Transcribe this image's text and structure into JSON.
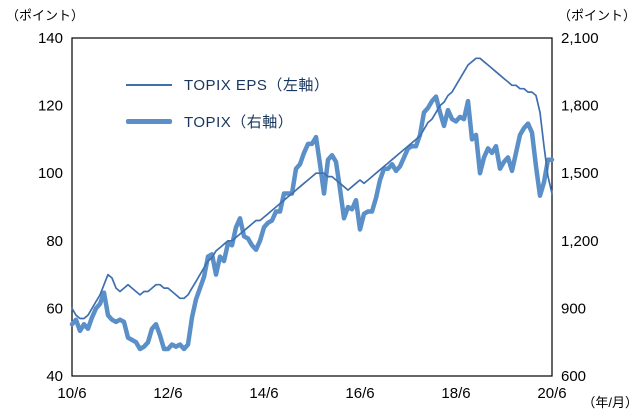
{
  "header": {
    "left_axis_unit": "（ポイント）",
    "right_axis_unit": "（ポイント）",
    "x_axis_unit": "（年/月）"
  },
  "legend": [
    {
      "label": "TOPIX EPS（左軸）",
      "style": "thin"
    },
    {
      "label": "TOPIX（右軸）",
      "style": "thick"
    }
  ],
  "colors": {
    "eps_line": "#3f6fb0",
    "topix_line": "#5a8fc8",
    "axis_text": "#000000",
    "legend_text": "#17365d",
    "plot_border": "#000000"
  },
  "chart_data": {
    "type": "line",
    "x_start": "2010/6",
    "x_end": "2020/6",
    "x_frequency": "monthly",
    "left_axis": {
      "unit": "（ポイント）",
      "min": 40,
      "max": 140,
      "tick_values": [
        140,
        120,
        100,
        80,
        60,
        40
      ],
      "tick_labels": [
        "140",
        "120",
        "100",
        "80",
        "60",
        "40"
      ]
    },
    "right_axis": {
      "unit": "（ポイント）",
      "min": 600,
      "max": 2100,
      "tick_values": [
        2100,
        1800,
        1500,
        1200,
        900,
        600
      ],
      "tick_labels": [
        "2,100",
        "1,800",
        "1,500",
        "1,200",
        "900",
        "600"
      ]
    },
    "x_axis": {
      "unit": "（年/月）",
      "tick_labels": [
        "10/6",
        "12/6",
        "14/6",
        "16/6",
        "18/6",
        "20/6"
      ],
      "tick_indices": [
        0,
        24,
        48,
        72,
        96,
        120
      ]
    },
    "grid": false,
    "legend_position": "inside-top-left",
    "series": [
      {
        "name": "TOPIX EPS（左軸）",
        "axis": "left",
        "style": "thin",
        "values": [
          60,
          58,
          57,
          57,
          58,
          60,
          62,
          64,
          67,
          70,
          69,
          66,
          65,
          66,
          67,
          66,
          65,
          64,
          65,
          65,
          66,
          67,
          67,
          66,
          66,
          65,
          64,
          63,
          63,
          64,
          66,
          68,
          70,
          72,
          74,
          75,
          77,
          78,
          79,
          80,
          80,
          81,
          82,
          83,
          84,
          85,
          86,
          86,
          87,
          88,
          89,
          90,
          91,
          92,
          93,
          94,
          95,
          96,
          97,
          98,
          99,
          100,
          100,
          100,
          99,
          99,
          98,
          97,
          96,
          95,
          96,
          97,
          98,
          97,
          98,
          99,
          100,
          101,
          102,
          103,
          104,
          105,
          106,
          107,
          108,
          109,
          110,
          111,
          113,
          115,
          116,
          118,
          120,
          121,
          123,
          124,
          126,
          128,
          130,
          132,
          133,
          134,
          134,
          133,
          132,
          131,
          130,
          129,
          128,
          127,
          126,
          126,
          125,
          125,
          124,
          124,
          123,
          118,
          108,
          99,
          94
        ]
      },
      {
        "name": "TOPIX（右軸）",
        "axis": "right",
        "style": "thick",
        "values": [
          830,
          850,
          800,
          830,
          810,
          860,
          900,
          920,
          970,
          870,
          850,
          840,
          850,
          840,
          770,
          760,
          750,
          720,
          730,
          750,
          810,
          830,
          780,
          720,
          720,
          740,
          730,
          740,
          720,
          740,
          860,
          940,
          990,
          1040,
          1130,
          1140,
          1050,
          1130,
          1110,
          1190,
          1180,
          1260,
          1300,
          1220,
          1210,
          1180,
          1160,
          1200,
          1260,
          1280,
          1290,
          1330,
          1330,
          1410,
          1410,
          1410,
          1520,
          1540,
          1590,
          1630,
          1630,
          1660,
          1540,
          1410,
          1560,
          1580,
          1550,
          1430,
          1300,
          1350,
          1340,
          1380,
          1250,
          1320,
          1330,
          1330,
          1390,
          1470,
          1520,
          1520,
          1540,
          1510,
          1530,
          1570,
          1610,
          1620,
          1620,
          1670,
          1770,
          1790,
          1820,
          1840,
          1770,
          1710,
          1780,
          1740,
          1730,
          1750,
          1740,
          1820,
          1650,
          1670,
          1500,
          1570,
          1610,
          1590,
          1620,
          1520,
          1550,
          1570,
          1510,
          1590,
          1670,
          1700,
          1720,
          1680,
          1530,
          1400,
          1460,
          1560,
          1560
        ]
      }
    ]
  }
}
